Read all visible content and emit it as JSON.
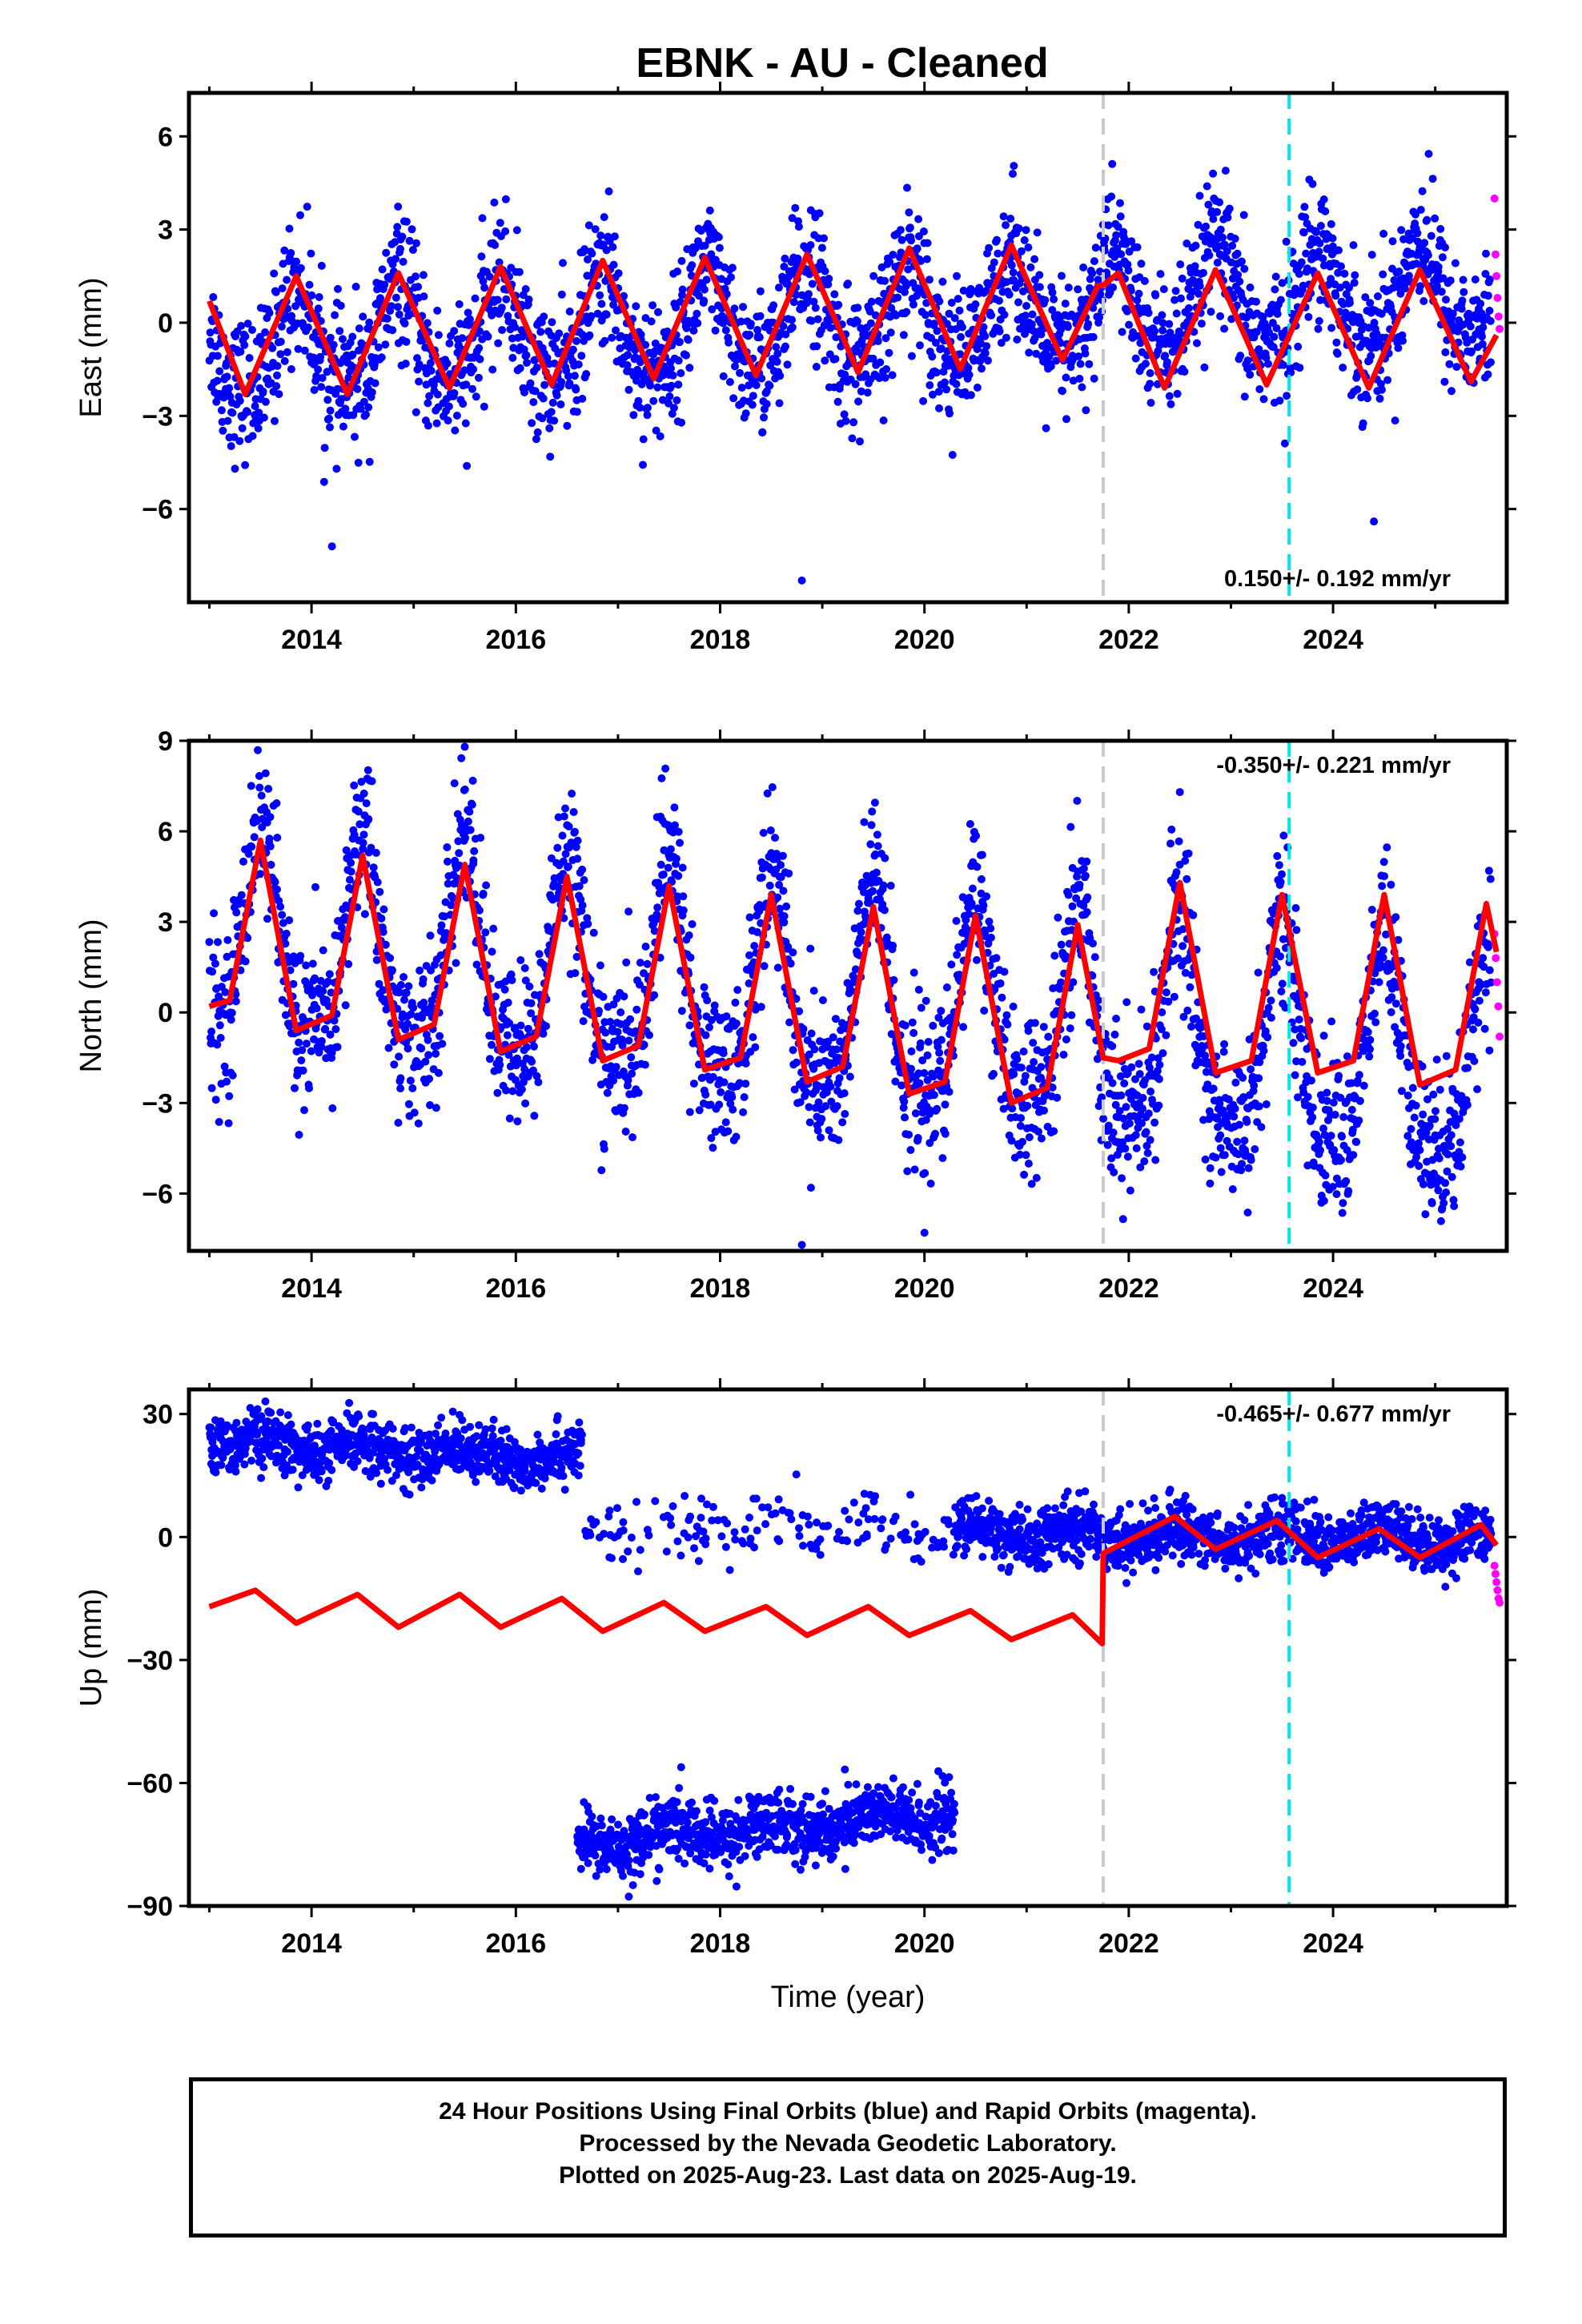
{
  "title": "EBNK  - AU - Cleaned",
  "footer": {
    "line1": "24 Hour Positions Using Final Orbits (blue) and Rapid Orbits (magenta).",
    "line2": "Processed by the Nevada Geodetic Laboratory.",
    "line3": "Plotted on 2025-Aug-23. Last data on 2025-Aug-19."
  },
  "colors": {
    "final_orbits": "#0000ff",
    "rapid_orbits": "#ff00ff",
    "model_fit": "#ff0000",
    "equipment_change": "#c8c8c8",
    "earthquake": "#00e5e5"
  },
  "chart_data": [
    {
      "type": "scatter",
      "ylabel": "East (mm)",
      "xlabel": "",
      "xlim": [
        2012.8,
        2025.7
      ],
      "ylim": [
        -9.0,
        7.4
      ],
      "xticks": [
        2014,
        2016,
        2018,
        2020,
        2022,
        2024
      ],
      "yticks": [
        6,
        3,
        0,
        -3,
        -6
      ],
      "rate_label": "0.150+/- 0.192 mm/yr",
      "rate_position": "bottom-right",
      "vlines": [
        {
          "x": 2021.75,
          "kind": "equipment_change"
        },
        {
          "x": 2023.57,
          "kind": "earthquake"
        }
      ],
      "final_orbits": {
        "start": 2013.0,
        "end": 2025.55,
        "offset": 0.0,
        "annual_amp": 1.6,
        "annual_phase_peak": 0.85,
        "semi_amp": 0.35,
        "noise_sd": 1.1,
        "trend_mm_per_yr": 0.15,
        "outliers": [
          [
            2018.8,
            -8.3
          ],
          [
            2024.4,
            -6.4
          ],
          [
            2014.2,
            -7.2
          ]
        ]
      },
      "rapid_orbits": {
        "start": 2025.58,
        "end": 2025.63,
        "values": [
          4.0,
          2.2,
          1.5,
          0.8,
          0.2,
          -0.2
        ]
      },
      "model": [
        [
          2013.0,
          0.7
        ],
        [
          2013.35,
          -2.3
        ],
        [
          2013.85,
          1.5
        ],
        [
          2014.35,
          -2.3
        ],
        [
          2014.85,
          1.6
        ],
        [
          2015.35,
          -2.1
        ],
        [
          2015.85,
          1.8
        ],
        [
          2016.35,
          -2.0
        ],
        [
          2016.85,
          2.0
        ],
        [
          2017.35,
          -1.8
        ],
        [
          2017.85,
          2.1
        ],
        [
          2018.35,
          -1.7
        ],
        [
          2018.85,
          2.2
        ],
        [
          2019.35,
          -1.6
        ],
        [
          2019.85,
          2.4
        ],
        [
          2020.35,
          -1.5
        ],
        [
          2020.85,
          2.5
        ],
        [
          2021.35,
          -1.2
        ],
        [
          2021.7,
          1.2
        ],
        [
          2021.75,
          1.2
        ],
        [
          2021.9,
          1.6
        ],
        [
          2022.35,
          -2.1
        ],
        [
          2022.85,
          1.7
        ],
        [
          2023.35,
          -2.0
        ],
        [
          2023.85,
          1.6
        ],
        [
          2024.35,
          -2.1
        ],
        [
          2024.85,
          1.7
        ],
        [
          2025.35,
          -1.9
        ],
        [
          2025.6,
          -0.4
        ]
      ]
    },
    {
      "type": "scatter",
      "ylabel": "North (mm)",
      "xlabel": "",
      "xlim": [
        2012.8,
        2025.7
      ],
      "ylim": [
        -7.9,
        9.0
      ],
      "xticks": [
        2014,
        2016,
        2018,
        2020,
        2022,
        2024
      ],
      "yticks": [
        9,
        6,
        3,
        0,
        -3,
        -6
      ],
      "rate_label": "-0.350+/- 0.221 mm/yr",
      "rate_position": "top-right",
      "vlines": [
        {
          "x": 2021.75,
          "kind": "equipment_change"
        },
        {
          "x": 2023.57,
          "kind": "earthquake"
        }
      ],
      "final_orbits": {
        "start": 2013.0,
        "end": 2025.55,
        "offset": 0.2,
        "annual_amp": 3.4,
        "annual_phase_peak": 0.5,
        "semi_amp": 1.0,
        "noise_sd": 1.3,
        "trend_mm_per_yr": -0.35,
        "outliers": [
          [
            2015.5,
            8.8
          ],
          [
            2018.8,
            -7.7
          ],
          [
            2020.0,
            -7.3
          ],
          [
            2022.5,
            7.3
          ]
        ]
      },
      "rapid_orbits": {
        "start": 2025.58,
        "end": 2025.63,
        "values": [
          2.6,
          1.8,
          1.0,
          0.2,
          -0.8
        ]
      },
      "model": [
        [
          2013.0,
          0.2
        ],
        [
          2013.2,
          0.4
        ],
        [
          2013.5,
          5.7
        ],
        [
          2013.85,
          -0.6
        ],
        [
          2014.2,
          -0.1
        ],
        [
          2014.5,
          5.2
        ],
        [
          2014.85,
          -0.9
        ],
        [
          2015.2,
          -0.4
        ],
        [
          2015.5,
          4.9
        ],
        [
          2015.85,
          -1.3
        ],
        [
          2016.2,
          -0.8
        ],
        [
          2016.5,
          4.5
        ],
        [
          2016.85,
          -1.6
        ],
        [
          2017.2,
          -1.1
        ],
        [
          2017.5,
          4.2
        ],
        [
          2017.85,
          -1.9
        ],
        [
          2018.2,
          -1.5
        ],
        [
          2018.5,
          3.9
        ],
        [
          2018.85,
          -2.3
        ],
        [
          2019.2,
          -1.8
        ],
        [
          2019.5,
          3.5
        ],
        [
          2019.85,
          -2.7
        ],
        [
          2020.2,
          -2.3
        ],
        [
          2020.5,
          3.2
        ],
        [
          2020.85,
          -3.0
        ],
        [
          2021.2,
          -2.5
        ],
        [
          2021.5,
          2.9
        ],
        [
          2021.75,
          -1.5
        ],
        [
          2021.9,
          -1.6
        ],
        [
          2022.2,
          -1.2
        ],
        [
          2022.5,
          4.3
        ],
        [
          2022.85,
          -2.0
        ],
        [
          2023.2,
          -1.6
        ],
        [
          2023.5,
          3.9
        ],
        [
          2023.85,
          -2.0
        ],
        [
          2024.2,
          -1.6
        ],
        [
          2024.5,
          3.9
        ],
        [
          2024.85,
          -2.4
        ],
        [
          2025.2,
          -1.9
        ],
        [
          2025.5,
          3.6
        ],
        [
          2025.6,
          2.0
        ]
      ]
    },
    {
      "type": "scatter",
      "ylabel": "Up (mm)",
      "xlabel": "Time (year)",
      "xlim": [
        2012.8,
        2025.7
      ],
      "ylim": [
        -90,
        36
      ],
      "xticks": [
        2014,
        2016,
        2018,
        2020,
        2022,
        2024
      ],
      "yticks": [
        30,
        0,
        -30,
        -60,
        -90
      ],
      "rate_label": "-0.465+/- 0.677 mm/yr",
      "rate_position": "top-right",
      "vlines": [
        {
          "x": 2021.75,
          "kind": "equipment_change"
        },
        {
          "x": 2023.57,
          "kind": "earthquake"
        }
      ],
      "final_orbits_segments": [
        {
          "start": 2013.0,
          "end": 2016.65,
          "offset": 16.0,
          "trend_mm_per_yr": -1.2,
          "annual_amp": 2.0,
          "noise_sd": 3.5
        },
        {
          "start": 2016.65,
          "end": 2020.3,
          "offset": 2.0,
          "trend_mm_per_yr": 0.0,
          "annual_amp": 2.0,
          "noise_sd": 4.0,
          "sparse": true
        },
        {
          "start": 2016.6,
          "end": 2020.3,
          "offset": -70.0,
          "trend_mm_per_yr": 2.0,
          "annual_amp": 2.0,
          "noise_sd": 4.0
        },
        {
          "start": 2020.3,
          "end": 2025.55,
          "offset": 1.0,
          "trend_mm_per_yr": -0.2,
          "annual_amp": 2.0,
          "noise_sd": 3.5
        }
      ],
      "rapid_orbits": {
        "start": 2025.58,
        "end": 2025.63,
        "values": [
          -7,
          -9,
          -11,
          -13,
          -15,
          -16
        ]
      },
      "model": [
        [
          2013.0,
          -17
        ],
        [
          2013.45,
          -13
        ],
        [
          2013.85,
          -21
        ],
        [
          2014.45,
          -14
        ],
        [
          2014.85,
          -22
        ],
        [
          2015.45,
          -14
        ],
        [
          2015.85,
          -22
        ],
        [
          2016.45,
          -15
        ],
        [
          2016.85,
          -23
        ],
        [
          2017.45,
          -16
        ],
        [
          2017.85,
          -23
        ],
        [
          2018.45,
          -17
        ],
        [
          2018.85,
          -24
        ],
        [
          2019.45,
          -17
        ],
        [
          2019.85,
          -24
        ],
        [
          2020.45,
          -18
        ],
        [
          2020.85,
          -25
        ],
        [
          2021.45,
          -19
        ],
        [
          2021.74,
          -26
        ],
        [
          2021.75,
          -4
        ],
        [
          2022.45,
          5
        ],
        [
          2022.85,
          -3
        ],
        [
          2023.45,
          4
        ],
        [
          2023.85,
          -5
        ],
        [
          2024.45,
          2
        ],
        [
          2024.85,
          -5
        ],
        [
          2025.45,
          3
        ],
        [
          2025.6,
          -2
        ]
      ]
    }
  ]
}
